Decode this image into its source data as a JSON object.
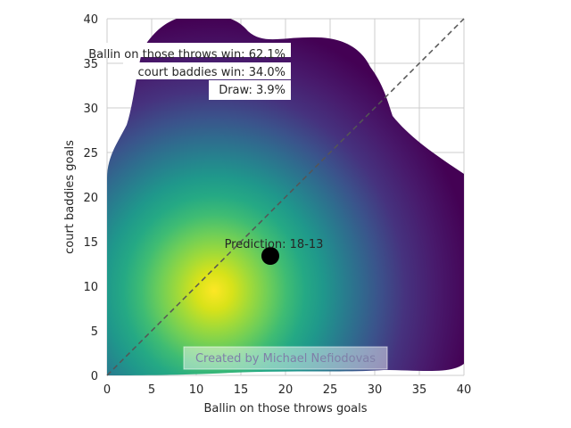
{
  "chart_data": {
    "type": "heatmap",
    "title": "",
    "xlabel": "Ballin on those throws goals",
    "ylabel": "court baddies goals",
    "xlim": [
      0,
      40
    ],
    "ylim": [
      0,
      40
    ],
    "x_ticks": [
      0,
      5,
      10,
      15,
      20,
      25,
      30,
      35,
      40
    ],
    "y_ticks": [
      0,
      5,
      10,
      15,
      20,
      25,
      30,
      35,
      40
    ],
    "grid": true,
    "colormap": "viridis",
    "density_peak": {
      "x": 12.5,
      "y": 9.5
    },
    "prediction_point": {
      "x": 18.3,
      "y": 13.4,
      "label": "Prediction: 18-13"
    },
    "diagonal_reference": {
      "from": [
        0,
        0
      ],
      "to": [
        40,
        40
      ],
      "style": "dashed"
    },
    "outcome_probabilities": [
      {
        "label": "Ballin on those throws win: 62.1%"
      },
      {
        "label": "court baddies win: 34.0%"
      },
      {
        "label": "Draw: 3.9%"
      }
    ],
    "watermark": "Created by Michael Nefiodovas"
  },
  "colors": {
    "grid": "#cccccc",
    "diagonal": "#555555",
    "point": "#000000",
    "background": "#ffffff"
  }
}
